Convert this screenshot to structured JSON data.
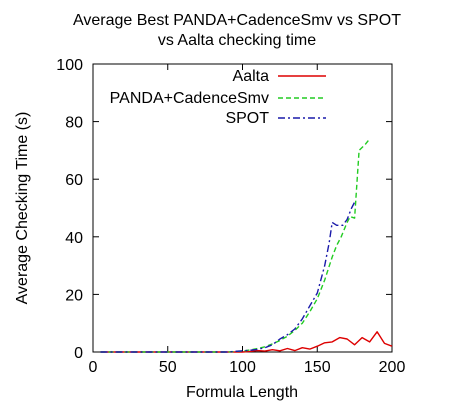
{
  "chart_data": {
    "type": "line",
    "title_lines": [
      "Average Best PANDA+CadenceSmv vs SPOT",
      "vs Aalta checking time"
    ],
    "xlabel": "Formula Length",
    "ylabel": "Average Checking Time (s)",
    "xlim": [
      0,
      200
    ],
    "ylim": [
      0,
      100
    ],
    "xticks": [
      0,
      50,
      100,
      150,
      200
    ],
    "yticks": [
      0,
      20,
      40,
      60,
      80,
      100
    ],
    "grid": false,
    "legend_position": "top-right",
    "series": [
      {
        "name": "Aalta",
        "color": "#dd0000",
        "dash": "solid",
        "x": [
          5,
          10,
          20,
          30,
          40,
          50,
          60,
          70,
          80,
          90,
          100,
          105,
          110,
          115,
          120,
          125,
          130,
          135,
          140,
          145,
          150,
          155,
          160,
          165,
          170,
          175,
          180,
          185,
          190,
          195,
          200
        ],
        "y": [
          0,
          0,
          0,
          0,
          0,
          0,
          0,
          0,
          0,
          0,
          0,
          0.2,
          0.5,
          0.3,
          0.8,
          0.4,
          1.2,
          0.5,
          1.5,
          1.0,
          2.0,
          3.2,
          3.5,
          5.0,
          4.5,
          2.5,
          5.0,
          3.5,
          7.0,
          3.0,
          2.0
        ]
      },
      {
        "name": "PANDA+CadenceSmv",
        "color": "#22cc22",
        "dash": "dashed",
        "x": [
          5,
          10,
          20,
          30,
          40,
          50,
          60,
          70,
          80,
          90,
          100,
          105,
          110,
          115,
          120,
          125,
          130,
          135,
          140,
          145,
          150,
          155,
          160,
          163,
          166,
          170,
          172,
          175,
          178,
          182,
          185
        ],
        "y": [
          0,
          0,
          0,
          0,
          0,
          0,
          0,
          0,
          0,
          0,
          0.3,
          0.7,
          1.2,
          1.8,
          2.8,
          4.0,
          5.5,
          7.5,
          10.0,
          14.0,
          18.5,
          25.0,
          33.0,
          37.0,
          40.0,
          45.0,
          47.0,
          46.5,
          70.0,
          72.0,
          74.0
        ]
      },
      {
        "name": "SPOT",
        "color": "#1a1aaa",
        "dash": "dashdot",
        "x": [
          5,
          10,
          20,
          30,
          40,
          50,
          60,
          70,
          80,
          90,
          100,
          105,
          110,
          115,
          120,
          125,
          130,
          135,
          140,
          145,
          150,
          155,
          158,
          160,
          163,
          167,
          170,
          173,
          175
        ],
        "y": [
          0,
          0,
          0,
          0,
          0,
          0,
          0,
          0,
          0,
          0,
          0.4,
          0.6,
          0.9,
          1.5,
          2.5,
          4.5,
          6.0,
          8.0,
          11.5,
          16.0,
          20.5,
          30.0,
          38.0,
          45.0,
          44.0,
          44.0,
          46.0,
          50.0,
          52.0
        ]
      }
    ]
  }
}
